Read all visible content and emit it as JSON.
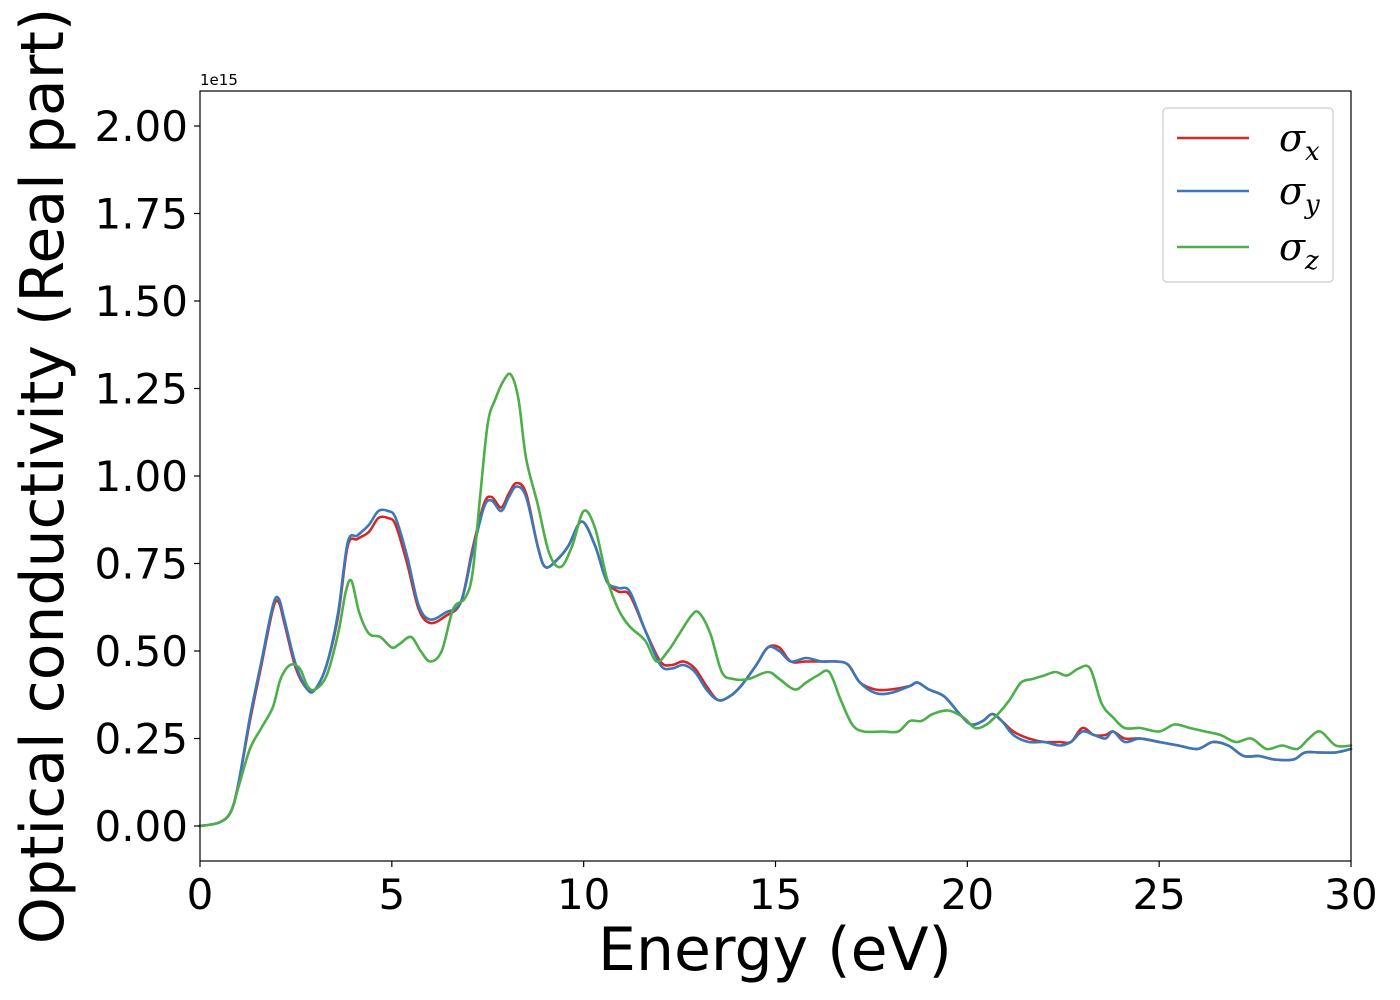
{
  "chart_data": {
    "type": "line",
    "title": "",
    "xlabel": "Energy (eV)",
    "ylabel": "Optical conductivity (Real part)",
    "y_offset_label": "1e15",
    "xlim": [
      0,
      30
    ],
    "ylim": [
      -0.1,
      2.1
    ],
    "xticks": [
      0,
      5,
      10,
      15,
      20,
      25,
      30
    ],
    "xtick_labels": [
      "0",
      "5",
      "10",
      "15",
      "20",
      "25",
      "30"
    ],
    "yticks": [
      0.0,
      0.25,
      0.5,
      0.75,
      1.0,
      1.25,
      1.5,
      1.75,
      2.0
    ],
    "ytick_labels": [
      "0.00",
      "0.25",
      "0.50",
      "0.75",
      "1.00",
      "1.25",
      "1.50",
      "1.75",
      "2.00"
    ],
    "grid": false,
    "legend": "top-right",
    "series": [
      {
        "name": "σx",
        "symbol": "σ",
        "subscript": "x",
        "color": "#d62728",
        "x": [
          0,
          0.5,
          0.8,
          1.0,
          1.3,
          1.6,
          1.9,
          2.05,
          2.2,
          2.5,
          2.8,
          3.0,
          3.3,
          3.6,
          3.85,
          4.1,
          4.4,
          4.65,
          4.9,
          5.1,
          5.4,
          5.7,
          6.0,
          6.4,
          6.8,
          7.1,
          7.4,
          7.6,
          7.85,
          8.05,
          8.25,
          8.5,
          8.8,
          9.0,
          9.3,
          9.6,
          9.95,
          10.3,
          10.6,
          10.9,
          11.2,
          11.6,
          12.0,
          12.3,
          12.6,
          12.9,
          13.2,
          13.5,
          13.8,
          14.1,
          14.5,
          14.8,
          15.1,
          15.4,
          15.8,
          16.2,
          16.6,
          16.9,
          17.2,
          17.6,
          18.0,
          18.5,
          18.7,
          19.0,
          19.4,
          19.8,
          20.1,
          20.4,
          20.65,
          20.9,
          21.2,
          21.6,
          22.0,
          22.4,
          22.7,
          23.0,
          23.3,
          23.6,
          23.8,
          24.1,
          24.5,
          25.0,
          25.5,
          26.0,
          26.4,
          26.8,
          27.2,
          27.6,
          28.0,
          28.5,
          28.8,
          29.2,
          29.6,
          30.0
        ],
        "y": [
          0.0,
          0.01,
          0.04,
          0.12,
          0.3,
          0.46,
          0.62,
          0.64,
          0.58,
          0.45,
          0.39,
          0.39,
          0.46,
          0.6,
          0.8,
          0.82,
          0.84,
          0.88,
          0.88,
          0.86,
          0.75,
          0.62,
          0.58,
          0.6,
          0.64,
          0.79,
          0.92,
          0.94,
          0.91,
          0.95,
          0.98,
          0.95,
          0.8,
          0.74,
          0.76,
          0.8,
          0.87,
          0.8,
          0.7,
          0.67,
          0.66,
          0.56,
          0.47,
          0.46,
          0.47,
          0.45,
          0.4,
          0.36,
          0.37,
          0.4,
          0.46,
          0.51,
          0.51,
          0.47,
          0.47,
          0.47,
          0.47,
          0.46,
          0.41,
          0.39,
          0.39,
          0.4,
          0.41,
          0.39,
          0.37,
          0.32,
          0.29,
          0.3,
          0.32,
          0.3,
          0.27,
          0.25,
          0.24,
          0.24,
          0.24,
          0.28,
          0.26,
          0.26,
          0.27,
          0.25,
          0.25,
          0.24,
          0.23,
          0.22,
          0.24,
          0.23,
          0.2,
          0.2,
          0.19,
          0.19,
          0.21,
          0.21,
          0.21,
          0.22
        ]
      },
      {
        "name": "σy",
        "symbol": "σ",
        "subscript": "y",
        "color": "#3a79b7",
        "x": [
          0,
          0.5,
          0.8,
          1.0,
          1.3,
          1.6,
          1.9,
          2.05,
          2.2,
          2.5,
          2.8,
          3.0,
          3.3,
          3.6,
          3.85,
          4.1,
          4.4,
          4.65,
          4.9,
          5.1,
          5.4,
          5.7,
          6.0,
          6.4,
          6.8,
          7.1,
          7.4,
          7.6,
          7.85,
          8.05,
          8.25,
          8.5,
          8.8,
          9.0,
          9.3,
          9.6,
          9.95,
          10.3,
          10.6,
          10.9,
          11.2,
          11.6,
          12.0,
          12.3,
          12.6,
          12.9,
          13.2,
          13.5,
          13.8,
          14.1,
          14.5,
          14.8,
          15.1,
          15.4,
          15.8,
          16.2,
          16.6,
          16.9,
          17.2,
          17.6,
          18.0,
          18.5,
          18.7,
          19.0,
          19.4,
          19.8,
          20.1,
          20.4,
          20.65,
          20.9,
          21.2,
          21.6,
          22.0,
          22.4,
          22.7,
          23.0,
          23.3,
          23.6,
          23.8,
          24.1,
          24.5,
          25.0,
          25.5,
          26.0,
          26.4,
          26.8,
          27.2,
          27.6,
          28.0,
          28.5,
          28.8,
          29.2,
          29.6,
          30.0
        ],
        "y": [
          0.0,
          0.01,
          0.04,
          0.12,
          0.31,
          0.47,
          0.63,
          0.65,
          0.59,
          0.46,
          0.39,
          0.39,
          0.46,
          0.61,
          0.81,
          0.83,
          0.86,
          0.9,
          0.9,
          0.88,
          0.77,
          0.63,
          0.59,
          0.61,
          0.64,
          0.78,
          0.91,
          0.93,
          0.9,
          0.94,
          0.97,
          0.94,
          0.8,
          0.74,
          0.76,
          0.8,
          0.87,
          0.8,
          0.7,
          0.68,
          0.67,
          0.56,
          0.46,
          0.45,
          0.46,
          0.44,
          0.39,
          0.36,
          0.37,
          0.4,
          0.46,
          0.51,
          0.5,
          0.47,
          0.48,
          0.47,
          0.47,
          0.46,
          0.41,
          0.38,
          0.38,
          0.4,
          0.41,
          0.39,
          0.37,
          0.32,
          0.29,
          0.3,
          0.32,
          0.3,
          0.26,
          0.24,
          0.24,
          0.23,
          0.24,
          0.27,
          0.26,
          0.25,
          0.27,
          0.24,
          0.25,
          0.24,
          0.23,
          0.22,
          0.24,
          0.23,
          0.2,
          0.2,
          0.19,
          0.19,
          0.21,
          0.21,
          0.21,
          0.22
        ]
      },
      {
        "name": "σz",
        "symbol": "σ",
        "subscript": "z",
        "color": "#4daf4a",
        "x": [
          0,
          0.5,
          0.8,
          1.0,
          1.3,
          1.6,
          1.9,
          2.1,
          2.35,
          2.6,
          2.8,
          3.0,
          3.3,
          3.6,
          3.8,
          3.95,
          4.15,
          4.4,
          4.7,
          5.0,
          5.2,
          5.5,
          5.75,
          6.0,
          6.3,
          6.6,
          6.9,
          7.1,
          7.3,
          7.5,
          7.7,
          7.9,
          8.1,
          8.3,
          8.5,
          8.8,
          9.1,
          9.4,
          9.7,
          10.0,
          10.3,
          10.6,
          10.9,
          11.2,
          11.6,
          11.9,
          12.2,
          12.5,
          12.8,
          13.0,
          13.3,
          13.6,
          13.9,
          14.3,
          14.8,
          15.1,
          15.5,
          15.8,
          16.1,
          16.4,
          16.7,
          17.0,
          17.3,
          17.8,
          18.2,
          18.5,
          18.8,
          19.1,
          19.5,
          19.9,
          20.2,
          20.5,
          20.8,
          21.1,
          21.4,
          21.7,
          22.0,
          22.3,
          22.6,
          22.9,
          23.2,
          23.5,
          23.8,
          24.1,
          24.5,
          25.0,
          25.4,
          25.8,
          26.2,
          26.6,
          27.0,
          27.4,
          27.8,
          28.2,
          28.6,
          28.9,
          29.2,
          29.6,
          30.0
        ],
        "y": [
          0.0,
          0.01,
          0.04,
          0.11,
          0.22,
          0.28,
          0.34,
          0.42,
          0.46,
          0.45,
          0.4,
          0.39,
          0.43,
          0.55,
          0.67,
          0.7,
          0.61,
          0.55,
          0.54,
          0.51,
          0.52,
          0.54,
          0.5,
          0.47,
          0.5,
          0.62,
          0.65,
          0.72,
          0.94,
          1.15,
          1.22,
          1.27,
          1.29,
          1.22,
          1.05,
          0.92,
          0.78,
          0.74,
          0.8,
          0.9,
          0.85,
          0.71,
          0.62,
          0.57,
          0.53,
          0.47,
          0.5,
          0.55,
          0.6,
          0.61,
          0.55,
          0.44,
          0.42,
          0.42,
          0.44,
          0.42,
          0.39,
          0.41,
          0.43,
          0.44,
          0.36,
          0.29,
          0.27,
          0.27,
          0.27,
          0.3,
          0.3,
          0.32,
          0.33,
          0.31,
          0.28,
          0.29,
          0.32,
          0.36,
          0.41,
          0.42,
          0.43,
          0.44,
          0.43,
          0.45,
          0.45,
          0.35,
          0.31,
          0.28,
          0.28,
          0.27,
          0.29,
          0.28,
          0.27,
          0.26,
          0.24,
          0.25,
          0.22,
          0.23,
          0.22,
          0.25,
          0.27,
          0.23,
          0.23
        ]
      }
    ]
  }
}
